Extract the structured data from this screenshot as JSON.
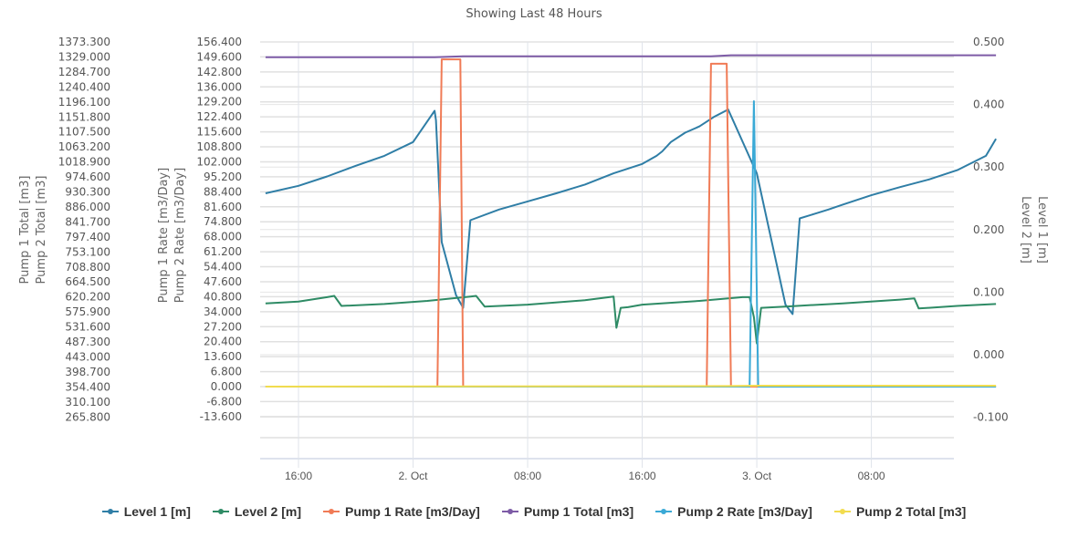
{
  "chart_data": {
    "type": "line",
    "title": "Showing Last 48 Hours",
    "x_ticks": [
      "16:00",
      "2. Oct",
      "08:00",
      "16:00",
      "3. Oct",
      "08:00"
    ],
    "x_unit": "hours since 1 Oct 16:00",
    "axes": {
      "left_outer": {
        "title": [
          "Pump 1 Total [m3]",
          "Pump 2 Total [m3]"
        ],
        "ticks": [
          "1373.300",
          "1329.000",
          "1284.700",
          "1240.400",
          "1196.100",
          "1151.800",
          "1107.500",
          "1063.200",
          "1018.900",
          "974.600",
          "930.300",
          "886.000",
          "841.700",
          "797.400",
          "753.100",
          "708.800",
          "664.500",
          "620.200",
          "575.900",
          "531.600",
          "487.300",
          "443.000",
          "398.700",
          "354.400",
          "310.100",
          "265.800"
        ],
        "range": [
          265.8,
          1373.3
        ]
      },
      "left_inner": {
        "title": [
          "Pump 1 Rate [m3/Day]",
          "Pump 2 Rate [m3/Day]"
        ],
        "ticks": [
          "156.400",
          "149.600",
          "142.800",
          "136.000",
          "129.200",
          "122.400",
          "115.600",
          "108.800",
          "102.000",
          "95.200",
          "88.400",
          "81.600",
          "74.800",
          "68.000",
          "61.200",
          "54.400",
          "47.600",
          "40.800",
          "34.000",
          "27.200",
          "20.400",
          "13.600",
          "6.800",
          "0.000",
          "-6.800",
          "-13.600"
        ],
        "range": [
          -13.6,
          156.4
        ]
      },
      "right": {
        "title": [
          "Level 1 [m]",
          "Level 2 [m]"
        ],
        "ticks": [
          "0.500",
          "0.400",
          "0.300",
          "0.200",
          "0.100",
          "0.000",
          "-0.100"
        ],
        "range": [
          -0.1,
          0.5
        ]
      }
    },
    "grid": true,
    "legend_position": "bottom",
    "series": [
      {
        "name": "Level 1 [m]",
        "color": "#2f7ea6",
        "axis": "right",
        "x": [
          -2.3,
          0,
          2,
          4,
          6,
          8,
          9.5,
          9.6,
          10,
          11,
          11.5,
          12,
          14,
          16,
          18,
          20,
          22,
          24,
          25,
          25.4,
          26,
          27,
          28,
          29,
          30,
          32,
          34,
          34.5,
          35,
          36,
          37,
          38,
          40,
          42,
          44,
          46,
          48,
          48.7
        ],
        "y": [
          0.258,
          0.27,
          0.285,
          0.302,
          0.318,
          0.34,
          0.39,
          0.375,
          0.18,
          0.095,
          0.075,
          0.215,
          0.232,
          0.245,
          0.258,
          0.272,
          0.29,
          0.305,
          0.318,
          0.325,
          0.34,
          0.355,
          0.365,
          0.38,
          0.392,
          0.29,
          0.08,
          0.065,
          0.218,
          0.225,
          0.232,
          0.24,
          0.255,
          0.268,
          0.28,
          0.295,
          0.318,
          0.345
        ]
      },
      {
        "name": "Level 2 [m]",
        "color": "#2e8b65",
        "axis": "right",
        "x": [
          -2.3,
          0,
          2,
          2.5,
          3,
          6,
          9,
          12,
          12.4,
          13,
          16,
          20,
          22,
          22.2,
          22.5,
          23,
          24,
          28,
          30,
          31,
          31.5,
          31.8,
          32,
          32.3,
          34,
          38,
          42,
          43,
          43.3,
          44,
          46,
          48.7
        ],
        "y": [
          0.082,
          0.085,
          0.092,
          0.094,
          0.078,
          0.081,
          0.086,
          0.093,
          0.094,
          0.077,
          0.08,
          0.087,
          0.093,
          0.043,
          0.075,
          0.076,
          0.08,
          0.086,
          0.09,
          0.092,
          0.092,
          0.06,
          0.018,
          0.075,
          0.077,
          0.082,
          0.088,
          0.09,
          0.074,
          0.075,
          0.078,
          0.081
        ]
      },
      {
        "name": "Pump 1 Rate [m3/Day]",
        "color": "#f07b56",
        "axis": "left_inner",
        "x": [
          -2.3,
          9.7,
          10,
          11.0,
          11.3,
          11.5,
          28.5,
          28.8,
          29.9,
          30.2,
          48.7
        ],
        "y": [
          0,
          0,
          148.5,
          148.5,
          148.5,
          0,
          0,
          146.5,
          146.5,
          0,
          0
        ]
      },
      {
        "name": "Pump 1 Total [m3]",
        "color": "#7d5ba6",
        "axis": "left_outer",
        "x": [
          -2.3,
          9.5,
          11.5,
          28.8,
          30.2,
          48.7
        ],
        "y": [
          1328,
          1328,
          1331,
          1331,
          1334,
          1334
        ]
      },
      {
        "name": "Pump 2 Rate [m3/Day]",
        "color": "#3aa9d6",
        "axis": "left_inner",
        "x": [
          -2.3,
          31.5,
          31.8,
          32.1,
          48.7
        ],
        "y": [
          0,
          0,
          129.5,
          0,
          0
        ]
      },
      {
        "name": "Pump 2 Total [m3]",
        "color": "#f2dc4e",
        "axis": "left_outer",
        "x": [
          -2.3,
          10,
          30,
          32,
          48.7
        ],
        "y": [
          354.4,
          355,
          356,
          357,
          357
        ]
      }
    ]
  },
  "legend": {
    "items": [
      {
        "label": "Level 1 [m]",
        "color": "#2f7ea6"
      },
      {
        "label": "Level 2 [m]",
        "color": "#2e8b65"
      },
      {
        "label": "Pump 1 Rate [m3/Day]",
        "color": "#f07b56"
      },
      {
        "label": "Pump 1 Total [m3]",
        "color": "#7d5ba6"
      },
      {
        "label": "Pump 2 Rate [m3/Day]",
        "color": "#3aa9d6"
      },
      {
        "label": "Pump 2 Total [m3]",
        "color": "#f2dc4e"
      }
    ]
  }
}
